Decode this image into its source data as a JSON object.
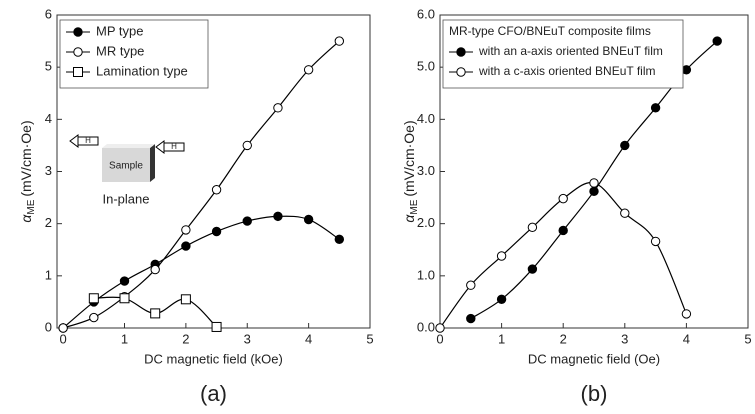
{
  "chart_data": [
    {
      "type": "scatter",
      "panel_label": "(a)",
      "x_label": "DC magnetic field (kOe)",
      "y_label": {
        "symbol": "α",
        "subscript": "ME",
        "unit": "(mV/cm·Oe)"
      },
      "xlim": [
        -0.1,
        5
      ],
      "ylim": [
        0,
        6
      ],
      "xticks": [
        0,
        1,
        2,
        3,
        4,
        5
      ],
      "yticks": [
        0,
        1,
        2,
        3,
        4,
        5,
        6
      ],
      "legend": "upper left",
      "series": [
        {
          "name": "MP type",
          "color": "#000000",
          "marker": "filled-circle",
          "x": [
            0,
            0.5,
            1,
            1.5,
            2,
            2.5,
            3,
            3.5,
            4,
            4.5
          ],
          "values": [
            0,
            0.5,
            0.9,
            1.22,
            1.57,
            1.85,
            2.05,
            2.14,
            2.08,
            1.7
          ]
        },
        {
          "name": "MR type",
          "color": "#000000",
          "marker": "open-circle",
          "x": [
            0,
            0.5,
            1,
            1.5,
            2,
            2.5,
            3,
            3.5,
            4,
            4.5
          ],
          "values": [
            0,
            0.2,
            0.6,
            1.12,
            1.88,
            2.65,
            3.5,
            4.22,
            4.95,
            5.5
          ]
        },
        {
          "name": "Lamination type",
          "color": "#000000",
          "marker": "open-square",
          "x": [
            0.5,
            1,
            1.5,
            2,
            2.5
          ],
          "values": [
            0.57,
            0.57,
            0.28,
            0.55,
            0.02
          ]
        }
      ],
      "inset": {
        "sample": "Sample",
        "field_left": "H",
        "field_right": "H",
        "caption": "In-plane"
      }
    },
    {
      "type": "scatter",
      "panel_label": "(b)",
      "x_label": "DC magnetic field (Oe)",
      "y_label": {
        "symbol": "α",
        "subscript": "ME",
        "unit": "(mV/cm·Oe)"
      },
      "xlim": [
        0,
        5
      ],
      "ylim": [
        0,
        6
      ],
      "xticks": [
        0,
        1,
        2,
        3,
        4,
        5
      ],
      "yticks": [
        {
          "value": 0,
          "label": "0.0"
        },
        {
          "value": 1,
          "label": "1.0"
        },
        {
          "value": 2,
          "label": "2.0"
        },
        {
          "value": 3,
          "label": "3.0"
        },
        {
          "value": 4,
          "label": "4.0"
        },
        {
          "value": 5,
          "label": "5.0"
        },
        {
          "value": 6,
          "label": "6.0"
        }
      ],
      "legend": "upper left",
      "legend_title": "MR-type CFO/BNEuT composite films",
      "series": [
        {
          "name": "with an a-axis oriented BNEuT film",
          "color": "#000000",
          "marker": "filled-circle",
          "x": [
            0.5,
            1,
            1.5,
            2,
            2.5,
            3,
            3.5,
            4,
            4.5
          ],
          "values": [
            0.18,
            0.55,
            1.13,
            1.87,
            2.62,
            3.5,
            4.22,
            4.95,
            5.5
          ]
        },
        {
          "name": "with a c-axis oriented BNEuT film",
          "color": "#000000",
          "marker": "open-circle",
          "x": [
            0,
            0.5,
            1,
            1.5,
            2,
            2.5,
            3,
            3.5,
            4
          ],
          "values": [
            0,
            0.82,
            1.38,
            1.93,
            2.48,
            2.78,
            2.2,
            1.66,
            0.27
          ]
        }
      ]
    }
  ]
}
